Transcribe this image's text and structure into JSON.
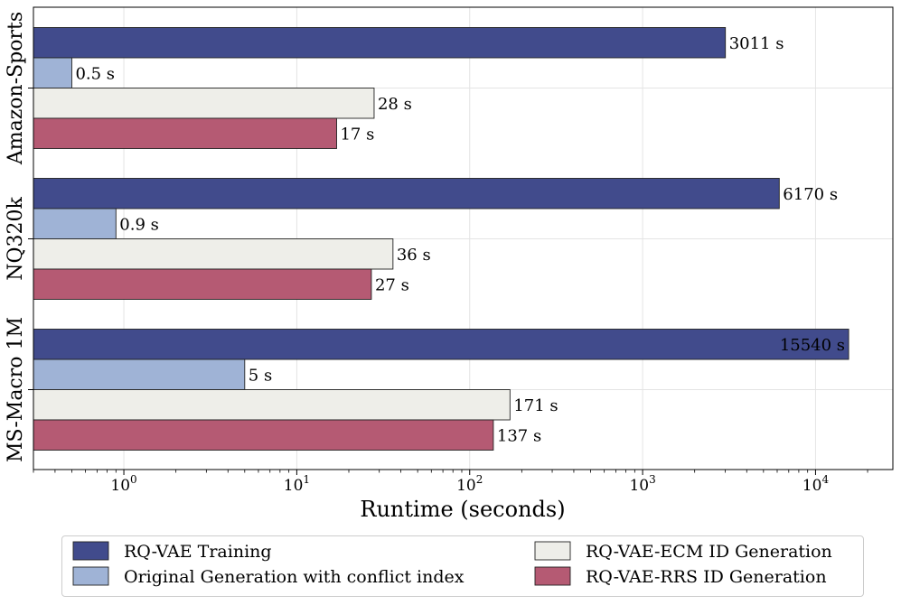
{
  "chart_data": {
    "type": "bar",
    "orientation": "horizontal",
    "x_scale": "log",
    "xlabel": "Runtime (seconds)",
    "xlim": [
      0.3,
      28000
    ],
    "x_ticks": [
      {
        "value": 1,
        "base": "10",
        "exp": "0"
      },
      {
        "value": 10,
        "base": "10",
        "exp": "1"
      },
      {
        "value": 100,
        "base": "10",
        "exp": "2"
      },
      {
        "value": 1000,
        "base": "10",
        "exp": "3"
      },
      {
        "value": 10000,
        "base": "10",
        "exp": "4"
      }
    ],
    "grid": true,
    "legend_position": "bottom",
    "categories": [
      "Amazon-Sports",
      "NQ320k",
      "MS-Macro 1M"
    ],
    "series": [
      {
        "name": "RQ-VAE Training",
        "color": "#414b8c",
        "values": [
          3011,
          6170,
          15540
        ],
        "labels": [
          "3011 s",
          "6170 s",
          "15540 s"
        ]
      },
      {
        "name": "Original Generation with conflict index",
        "color": "#9fb3d6",
        "values": [
          0.5,
          0.9,
          5
        ],
        "labels": [
          "0.5 s",
          "0.9 s",
          "5 s"
        ]
      },
      {
        "name": "RQ-VAE-ECM ID Generation",
        "color": "#eeeee9",
        "values": [
          28,
          36,
          171
        ],
        "labels": [
          "28 s",
          "36 s",
          "171 s"
        ]
      },
      {
        "name": "RQ-VAE-RRS ID Generation",
        "color": "#b55a73",
        "values": [
          17,
          27,
          137
        ],
        "labels": [
          "17 s",
          "27 s",
          "137 s"
        ]
      }
    ]
  }
}
